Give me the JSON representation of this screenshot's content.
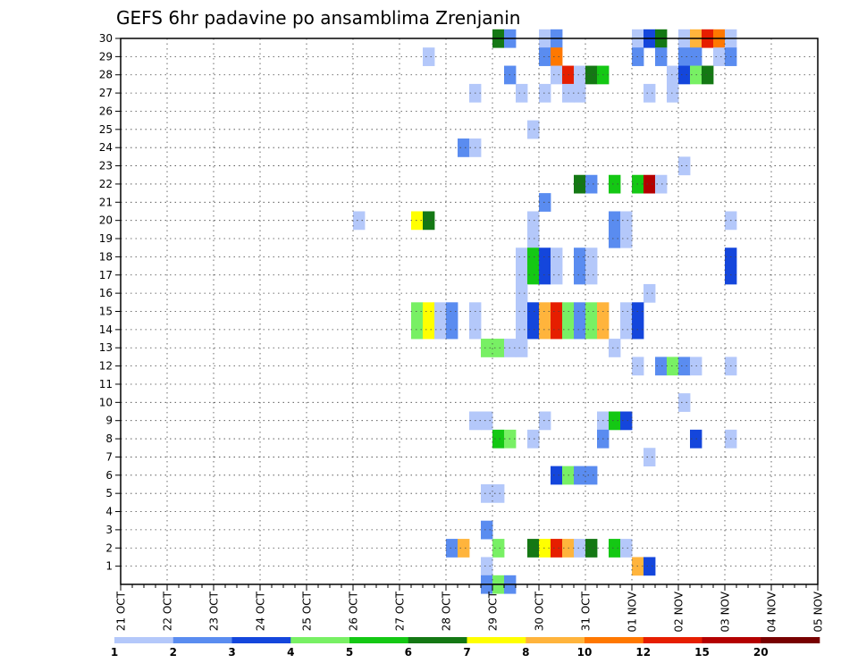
{
  "chart_data": {
    "type": "heatmap",
    "title": "GEFS 6hr padavine po ansamblima Zrenjanin",
    "xlabel": "",
    "ylabel": "",
    "x_ticks": [
      "21 OCT",
      "22 OCT",
      "23 OCT",
      "24 OCT",
      "25 OCT",
      "26 OCT",
      "27 OCT",
      "28 OCT",
      "29 OCT",
      "30 OCT",
      "31 OCT",
      "01 NOV",
      "02 NOV",
      "03 NOV",
      "04 NOV",
      "05 NOV"
    ],
    "x_step_hours": 6,
    "y_ticks": [
      1,
      2,
      3,
      4,
      5,
      6,
      7,
      8,
      9,
      10,
      11,
      12,
      13,
      14,
      15,
      16,
      17,
      18,
      19,
      20,
      21,
      22,
      23,
      24,
      25,
      26,
      27,
      28,
      29,
      30
    ],
    "ylim": [
      0,
      30
    ],
    "grid": true,
    "legend_position": "bottom",
    "legend": {
      "labels": [
        "1",
        "2",
        "3",
        "4",
        "5",
        "6",
        "7",
        "8",
        "10",
        "12",
        "15",
        "20"
      ],
      "colors": [
        "#b4c8fa",
        "#5a8cf0",
        "#1446dc",
        "#78f064",
        "#14c814",
        "#147814",
        "#ffff00",
        "#ffb43c",
        "#ff7800",
        "#e61e00",
        "#b40000",
        "#780000"
      ]
    },
    "cells": [
      {
        "member": 30,
        "step": [
          [
            32,
            "#147814"
          ],
          [
            33,
            "#5a8cf0"
          ],
          [
            36,
            "#b4c8fa"
          ],
          [
            37,
            "#5a8cf0"
          ],
          [
            44,
            "#b4c8fa"
          ],
          [
            45,
            "#1446dc"
          ],
          [
            46,
            "#147814"
          ],
          [
            48,
            "#b4c8fa"
          ],
          [
            49,
            "#ffb43c"
          ],
          [
            50,
            "#e61e00"
          ],
          [
            51,
            "#ff7800"
          ],
          [
            52,
            "#b4c8fa"
          ]
        ]
      },
      {
        "member": 29,
        "step": [
          [
            26,
            "#b4c8fa"
          ],
          [
            36,
            "#5a8cf0"
          ],
          [
            37,
            "#ff7800"
          ],
          [
            44,
            "#5a8cf0"
          ],
          [
            46,
            "#5a8cf0"
          ],
          [
            48,
            "#5a8cf0"
          ],
          [
            49,
            "#5a8cf0"
          ],
          [
            51,
            "#b4c8fa"
          ],
          [
            52,
            "#5a8cf0"
          ]
        ]
      },
      {
        "member": 28,
        "step": [
          [
            33,
            "#5a8cf0"
          ],
          [
            37,
            "#b4c8fa"
          ],
          [
            38,
            "#e61e00"
          ],
          [
            39,
            "#b4c8fa"
          ],
          [
            40,
            "#147814"
          ],
          [
            41,
            "#14c814"
          ],
          [
            47,
            "#b4c8fa"
          ],
          [
            48,
            "#1446dc"
          ],
          [
            49,
            "#78f064"
          ],
          [
            50,
            "#147814"
          ]
        ]
      },
      {
        "member": 27,
        "step": [
          [
            30,
            "#b4c8fa"
          ],
          [
            34,
            "#b4c8fa"
          ],
          [
            36,
            "#b4c8fa"
          ],
          [
            38,
            "#b4c8fa"
          ],
          [
            39,
            "#b4c8fa"
          ],
          [
            45,
            "#b4c8fa"
          ],
          [
            47,
            "#b4c8fa"
          ]
        ]
      },
      {
        "member": 25,
        "step": [
          [
            35,
            "#b4c8fa"
          ]
        ]
      },
      {
        "member": 24,
        "step": [
          [
            29,
            "#5a8cf0"
          ],
          [
            30,
            "#b4c8fa"
          ]
        ]
      },
      {
        "member": 23,
        "step": [
          [
            48,
            "#b4c8fa"
          ]
        ]
      },
      {
        "member": 22,
        "step": [
          [
            39,
            "#147814"
          ],
          [
            40,
            "#5a8cf0"
          ],
          [
            42,
            "#14c814"
          ],
          [
            44,
            "#14c814"
          ],
          [
            45,
            "#b40000"
          ],
          [
            46,
            "#b4c8fa"
          ]
        ]
      },
      {
        "member": 21,
        "step": [
          [
            36,
            "#5a8cf0"
          ]
        ]
      },
      {
        "member": 20,
        "step": [
          [
            20,
            "#b4c8fa"
          ],
          [
            25,
            "#ffff00"
          ],
          [
            26,
            "#147814"
          ],
          [
            35,
            "#b4c8fa"
          ],
          [
            42,
            "#5a8cf0"
          ],
          [
            43,
            "#b4c8fa"
          ],
          [
            52,
            "#b4c8fa"
          ]
        ]
      },
      {
        "member": 19,
        "step": [
          [
            35,
            "#b4c8fa"
          ],
          [
            42,
            "#5a8cf0"
          ],
          [
            43,
            "#b4c8fa"
          ]
        ]
      },
      {
        "member": 18,
        "step": [
          [
            34,
            "#b4c8fa"
          ],
          [
            35,
            "#14c814"
          ],
          [
            36,
            "#1446dc"
          ],
          [
            37,
            "#b4c8fa"
          ],
          [
            39,
            "#5a8cf0"
          ],
          [
            40,
            "#b4c8fa"
          ],
          [
            52,
            "#1446dc"
          ]
        ]
      },
      {
        "member": 17,
        "step": [
          [
            34,
            "#b4c8fa"
          ],
          [
            35,
            "#14c814"
          ],
          [
            36,
            "#1446dc"
          ],
          [
            37,
            "#b4c8fa"
          ],
          [
            39,
            "#5a8cf0"
          ],
          [
            40,
            "#b4c8fa"
          ],
          [
            52,
            "#1446dc"
          ]
        ]
      },
      {
        "member": 16,
        "step": [
          [
            34,
            "#b4c8fa"
          ],
          [
            45,
            "#b4c8fa"
          ]
        ]
      },
      {
        "member": 15,
        "step": [
          [
            25,
            "#78f064"
          ],
          [
            26,
            "#ffff00"
          ],
          [
            27,
            "#b4c8fa"
          ],
          [
            28,
            "#5a8cf0"
          ],
          [
            30,
            "#b4c8fa"
          ],
          [
            34,
            "#b4c8fa"
          ],
          [
            35,
            "#1446dc"
          ],
          [
            36,
            "#ffb43c"
          ],
          [
            37,
            "#e61e00"
          ],
          [
            38,
            "#78f064"
          ],
          [
            39,
            "#5a8cf0"
          ],
          [
            40,
            "#78f064"
          ],
          [
            41,
            "#ffb43c"
          ],
          [
            43,
            "#b4c8fa"
          ],
          [
            44,
            "#1446dc"
          ]
        ]
      },
      {
        "member": 14,
        "step": [
          [
            25,
            "#78f064"
          ],
          [
            26,
            "#ffff00"
          ],
          [
            27,
            "#b4c8fa"
          ],
          [
            28,
            "#5a8cf0"
          ],
          [
            30,
            "#b4c8fa"
          ],
          [
            34,
            "#b4c8fa"
          ],
          [
            35,
            "#1446dc"
          ],
          [
            36,
            "#ffb43c"
          ],
          [
            37,
            "#e61e00"
          ],
          [
            38,
            "#78f064"
          ],
          [
            39,
            "#5a8cf0"
          ],
          [
            40,
            "#78f064"
          ],
          [
            41,
            "#ffb43c"
          ],
          [
            43,
            "#b4c8fa"
          ],
          [
            44,
            "#1446dc"
          ]
        ]
      },
      {
        "member": 13,
        "step": [
          [
            31,
            "#78f064"
          ],
          [
            32,
            "#78f064"
          ],
          [
            33,
            "#b4c8fa"
          ],
          [
            34,
            "#b4c8fa"
          ],
          [
            42,
            "#b4c8fa"
          ]
        ]
      },
      {
        "member": 12,
        "step": [
          [
            44,
            "#b4c8fa"
          ],
          [
            46,
            "#5a8cf0"
          ],
          [
            47,
            "#78f064"
          ],
          [
            48,
            "#5a8cf0"
          ],
          [
            49,
            "#b4c8fa"
          ],
          [
            52,
            "#b4c8fa"
          ]
        ]
      },
      {
        "member": 10,
        "step": [
          [
            48,
            "#b4c8fa"
          ]
        ]
      },
      {
        "member": 9,
        "step": [
          [
            30,
            "#b4c8fa"
          ],
          [
            31,
            "#b4c8fa"
          ],
          [
            36,
            "#b4c8fa"
          ],
          [
            41,
            "#b4c8fa"
          ],
          [
            42,
            "#14c814"
          ],
          [
            43,
            "#1446dc"
          ]
        ]
      },
      {
        "member": 8,
        "step": [
          [
            32,
            "#14c814"
          ],
          [
            33,
            "#78f064"
          ],
          [
            35,
            "#b4c8fa"
          ],
          [
            41,
            "#5a8cf0"
          ],
          [
            49,
            "#1446dc"
          ],
          [
            52,
            "#b4c8fa"
          ]
        ]
      },
      {
        "member": 7,
        "step": [
          [
            45,
            "#b4c8fa"
          ]
        ]
      },
      {
        "member": 6,
        "step": [
          [
            37,
            "#1446dc"
          ],
          [
            38,
            "#78f064"
          ],
          [
            39,
            "#5a8cf0"
          ],
          [
            40,
            "#5a8cf0"
          ]
        ]
      },
      {
        "member": 5,
        "step": [
          [
            31,
            "#b4c8fa"
          ],
          [
            32,
            "#b4c8fa"
          ]
        ]
      },
      {
        "member": 3,
        "step": [
          [
            31,
            "#5a8cf0"
          ]
        ]
      },
      {
        "member": 2,
        "step": [
          [
            28,
            "#5a8cf0"
          ],
          [
            29,
            "#ffb43c"
          ],
          [
            32,
            "#78f064"
          ],
          [
            35,
            "#147814"
          ],
          [
            36,
            "#ffff00"
          ],
          [
            37,
            "#e61e00"
          ],
          [
            38,
            "#ffb43c"
          ],
          [
            39,
            "#b4c8fa"
          ],
          [
            40,
            "#147814"
          ],
          [
            42,
            "#14c814"
          ],
          [
            43,
            "#b4c8fa"
          ]
        ]
      },
      {
        "member": 1,
        "step": [
          [
            31,
            "#b4c8fa"
          ],
          [
            44,
            "#ffb43c"
          ],
          [
            45,
            "#1446dc"
          ]
        ]
      },
      {
        "member": 0,
        "step": [
          [
            31,
            "#5a8cf0"
          ],
          [
            32,
            "#78f064"
          ],
          [
            33,
            "#5a8cf0"
          ]
        ]
      }
    ]
  }
}
